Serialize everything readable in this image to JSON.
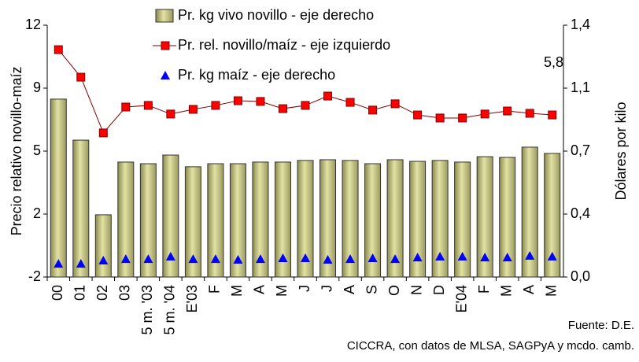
{
  "chart_data": {
    "type": "combo",
    "y_label": "Precio relativo novillo-maíz",
    "y2_label": "Dólares por kilo",
    "categories": [
      "00",
      "01",
      "02",
      "03",
      "5 m. '03",
      "5 m. '04",
      "E'03",
      "F",
      "M",
      "A",
      "M",
      "J",
      "J",
      "A",
      "S",
      "O",
      "N",
      "D",
      "E'04",
      "F",
      "M",
      "A",
      "M"
    ],
    "ylim": [
      -2,
      12
    ],
    "yticks": [
      -2,
      {
        "value": 1.5,
        "label": "2"
      },
      5,
      {
        "value": 8.5,
        "label": "9"
      },
      12
    ],
    "y2lim": [
      0,
      1.4
    ],
    "y2ticks": [
      {
        "value": 0,
        "label": "0,0"
      },
      {
        "value": 0.35,
        "label": "0,4"
      },
      {
        "value": 0.7,
        "label": "0,7"
      },
      {
        "value": 1.05,
        "label": "1,1"
      },
      {
        "value": 1.4,
        "label": "1,4"
      }
    ],
    "series": [
      {
        "name": "Pr. kg vivo novillo - eje derecho",
        "type": "bar",
        "axis": "y2",
        "color": "#e2e2a4",
        "values": [
          0.989,
          0.761,
          0.346,
          0.639,
          0.63,
          0.678,
          0.613,
          0.63,
          0.63,
          0.639,
          0.639,
          0.648,
          0.652,
          0.648,
          0.63,
          0.652,
          0.643,
          0.648,
          0.639,
          0.669,
          0.665,
          0.722,
          0.687
        ]
      },
      {
        "name": "Pr. rel. novillo/maíz - eje izquierdo",
        "type": "line",
        "color": "#ff0000",
        "values": [
          10.64,
          9.11,
          6.01,
          7.45,
          7.54,
          7.06,
          7.32,
          7.54,
          7.8,
          7.76,
          7.36,
          7.54,
          8.06,
          7.71,
          7.28,
          7.63,
          7.01,
          6.84,
          6.84,
          7.06,
          7.23,
          7.1,
          7.01
        ]
      },
      {
        "name": "Pr. kg maíz - eje derecho",
        "type": "scatter",
        "axis": "y2",
        "color": "#0000ff",
        "values": [
          0.074,
          0.074,
          0.092,
          0.1,
          0.1,
          0.114,
          0.1,
          0.1,
          0.096,
          0.1,
          0.105,
          0.105,
          0.096,
          0.1,
          0.105,
          0.1,
          0.109,
          0.114,
          0.114,
          0.109,
          0.109,
          0.118,
          0.114
        ]
      }
    ],
    "annotations": [
      "5,8",
      "Fuente: D.E.",
      "CICCRA, con datos de MLSA, SAGPyA y mcdo. camb."
    ]
  }
}
